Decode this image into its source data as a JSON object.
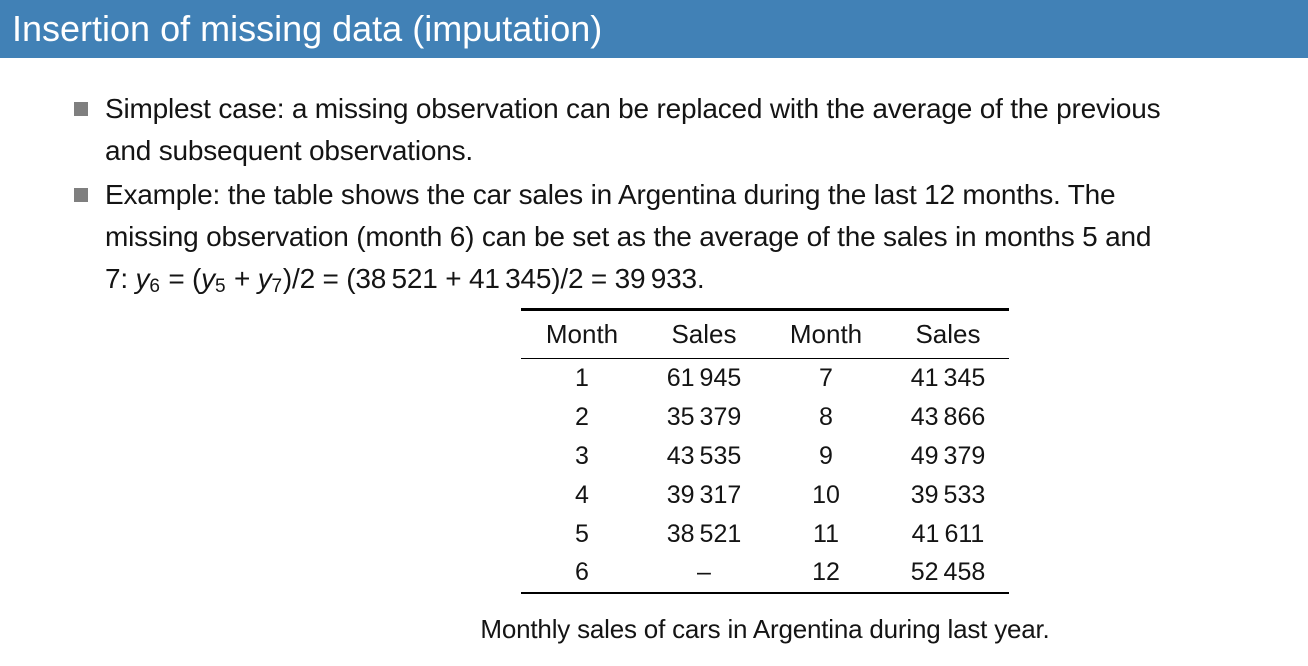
{
  "colors": {
    "header_bg": "#4181B6",
    "header_text": "#FFFFFF",
    "bullet": "#7F7F7F",
    "text": "#141414",
    "rule": "#000000"
  },
  "header": {
    "title": "Insertion of missing data (imputation)"
  },
  "bullets": {
    "item1": {
      "line1": "Simplest case: a missing observation can be replaced with the average of the previous",
      "line2": "and subsequent observations."
    },
    "item2": {
      "line1": "Example: the table shows the car sales in Argentina during the last 12 months. The",
      "line2": "missing observation (month 6) can be set as the average of the sales in months 5 and",
      "formula": {
        "lead": "7:  ",
        "y1": "y",
        "sub1": "6",
        "eq": " = (",
        "y2": "y",
        "sub2": "5",
        "plus": " + ",
        "y3": "y",
        "sub3": "7",
        "tail": ")/2 = (38 521 + 41 345)/2 = 39 933."
      }
    }
  },
  "table": {
    "headers": [
      "Month",
      "Sales",
      "Month",
      "Sales"
    ],
    "rows": [
      [
        "1",
        "61 945",
        "7",
        "41 345"
      ],
      [
        "2",
        "35 379",
        "8",
        "43 866"
      ],
      [
        "3",
        "43 535",
        "9",
        "49 379"
      ],
      [
        "4",
        "39 317",
        "10",
        "39 533"
      ],
      [
        "5",
        "38 521",
        "11",
        "41 611"
      ],
      [
        "6",
        "–",
        "12",
        "52 458"
      ]
    ],
    "caption": "Monthly sales of cars in Argentina during last year."
  }
}
